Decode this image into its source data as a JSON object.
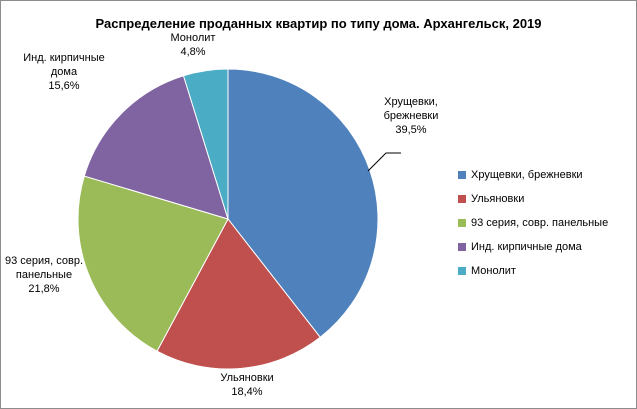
{
  "chart_data": {
    "type": "pie",
    "title": "Распределение проданных квартир по типу дома. Архангельск, 2019",
    "categories": [
      "Хрущевки, брежневки",
      "Ульяновки",
      "93 серия, совр. панельные",
      "Инд. кирпичные дома",
      "Монолит"
    ],
    "values": [
      39.5,
      18.4,
      21.8,
      15.6,
      4.8
    ],
    "value_labels": [
      "39,5%",
      "18,4%",
      "21,8%",
      "15,6%",
      "4,8%"
    ],
    "data_labels": [
      [
        "Хрущевки,",
        "брежневки",
        "39,5%"
      ],
      [
        "Ульяновки",
        "18,4%"
      ],
      [
        "93 серия, совр.",
        "панельные",
        "21,8%"
      ],
      [
        "Инд. кирпичные",
        "дома",
        "15,6%"
      ],
      [
        "Монолит",
        "4,8%"
      ]
    ],
    "colors": [
      "#4f81bd",
      "#c0504d",
      "#9bbb59",
      "#8064a2",
      "#4bacc6"
    ],
    "legend_position": "right"
  }
}
